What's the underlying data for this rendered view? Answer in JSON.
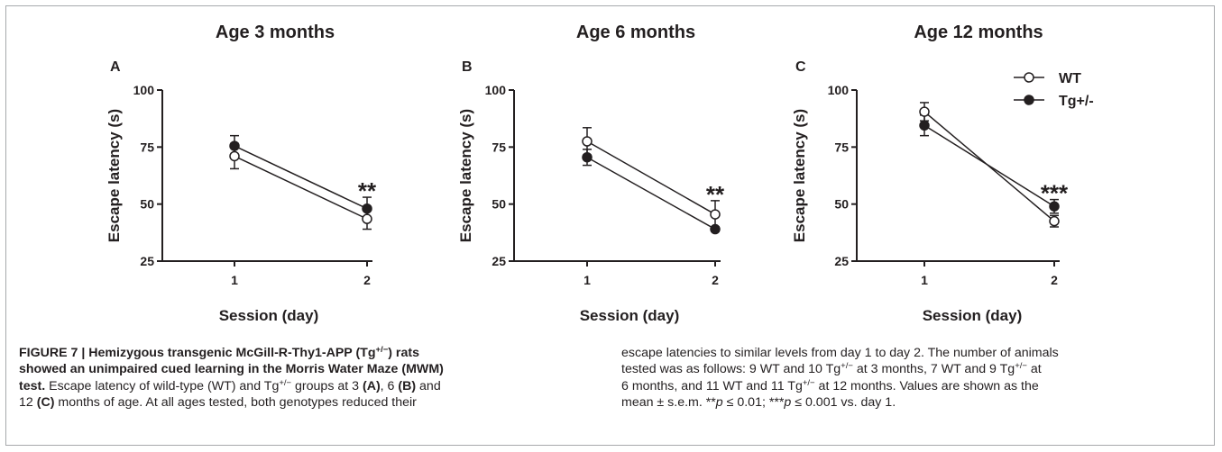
{
  "chart_data": [
    {
      "type": "line",
      "panel": "A",
      "title": "Age 3 months",
      "xlabel": "Session (day)",
      "ylabel": "Escape latency (s)",
      "x": [
        1,
        2
      ],
      "x_tick_labels": [
        "1",
        "2"
      ],
      "ylim": [
        25,
        100
      ],
      "y_ticks": [
        25,
        50,
        75,
        100
      ],
      "series": [
        {
          "name": "WT",
          "marker": "open-circle",
          "values": [
            71,
            43.5
          ],
          "errors": [
            5.5,
            4.5
          ]
        },
        {
          "name": "Tg+/-",
          "marker": "filled-circle",
          "values": [
            75.5,
            48
          ],
          "errors": [
            4.5,
            5
          ]
        }
      ],
      "annotations": [
        {
          "x": 2,
          "text": "**"
        }
      ]
    },
    {
      "type": "line",
      "panel": "B",
      "title": "Age 6 months",
      "xlabel": "Session (day)",
      "ylabel": "Escape latency (s)",
      "x": [
        1,
        2
      ],
      "x_tick_labels": [
        "1",
        "2"
      ],
      "ylim": [
        25,
        100
      ],
      "y_ticks": [
        25,
        50,
        75,
        100
      ],
      "series": [
        {
          "name": "WT",
          "marker": "open-circle",
          "values": [
            77.5,
            45.5
          ],
          "errors": [
            6,
            6
          ]
        },
        {
          "name": "Tg+/-",
          "marker": "filled-circle",
          "values": [
            70.5,
            39
          ],
          "errors": [
            3.5,
            1
          ]
        }
      ],
      "annotations": [
        {
          "x": 2,
          "text": "**"
        }
      ]
    },
    {
      "type": "line",
      "panel": "C",
      "title": "Age 12 months",
      "xlabel": "Session (day)",
      "ylabel": "Escape latency (s)",
      "x": [
        1,
        2
      ],
      "x_tick_labels": [
        "1",
        "2"
      ],
      "ylim": [
        25,
        100
      ],
      "y_ticks": [
        25,
        50,
        75,
        100
      ],
      "series": [
        {
          "name": "WT",
          "marker": "open-circle",
          "values": [
            90.5,
            42.5
          ],
          "errors": [
            4,
            2.5
          ]
        },
        {
          "name": "Tg+/-",
          "marker": "filled-circle",
          "values": [
            84.5,
            49
          ],
          "errors": [
            4.5,
            3
          ]
        }
      ],
      "annotations": [
        {
          "x": 2,
          "text": "***"
        }
      ],
      "legend": {
        "placement": "top-right",
        "entries": [
          "WT",
          "Tg+/-"
        ]
      }
    }
  ],
  "caption": {
    "figure_label": "FIGURE 7 | ",
    "title_a": "Hemizygous transgenic McGill-R-Thy1-APP (Tg",
    "tg_sup": "+/−",
    "title_b": ") rats",
    "title_line2": "showed an unimpaired cued learning in the Morris Water Maze (MWM)",
    "title_line3_bold": "test.",
    "l3_a": " Escape latency of wild-type (WT) and Tg",
    "l3_b": " groups at 3 ",
    "ref_a": "(A)",
    "l3_c": ", 6 ",
    "ref_b": "(B)",
    "l3_d": " and",
    "l4_a": "12 ",
    "ref_c": "(C)",
    "l4_b": " months of age. At all ages tested, both genotypes reduced their",
    "r1": "escape latencies to similar levels from day 1 to day 2. The number of animals",
    "r2_a": "tested was as follows: 9 WT and 10 Tg",
    "r2_b": " at 3 months, 7 WT and 9 Tg",
    "r2_c": " at",
    "r3_a": "6 months, and 11 WT and 11 Tg",
    "r3_b": " at 12 months. Values are shown as the",
    "r4_a": "mean ± s.e.m. **",
    "p": "p",
    "r4_b": " ≤ 0.01; ***",
    "r4_c": " ≤ 0.001 vs. day 1."
  }
}
